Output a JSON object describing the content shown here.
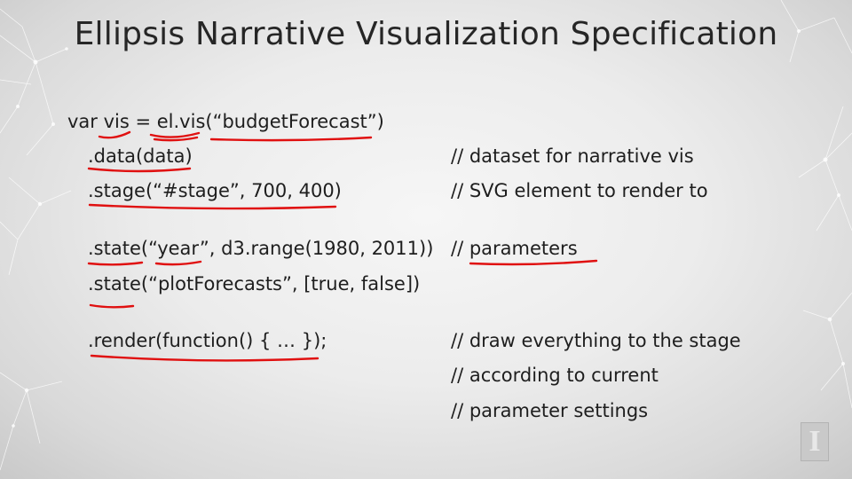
{
  "title": "Ellipsis Narrative Visualization Specification",
  "code_lines": [
    {
      "code": "var vis = el.vis(“budgetForecast”)",
      "comment": ""
    },
    {
      "code": ".data(data)",
      "comment": "// dataset for narrative vis"
    },
    {
      "code": ".stage(“#stage”, 700, 400)",
      "comment": "// SVG element to render to"
    },
    {
      "code": ".state(“year”, d3.range(1980, 2011))",
      "comment": "// parameters"
    },
    {
      "code": ".state(“plotForecasts”, [true, false])",
      "comment": ""
    },
    {
      "code": ".render(function() { … });",
      "comment": "// draw everything to the stage"
    },
    {
      "code": "",
      "comment": "// according to current"
    },
    {
      "code": "",
      "comment": "// parameter settings"
    }
  ],
  "logo_icon": "university-block-i-logo",
  "annotation_color": "#e01010"
}
